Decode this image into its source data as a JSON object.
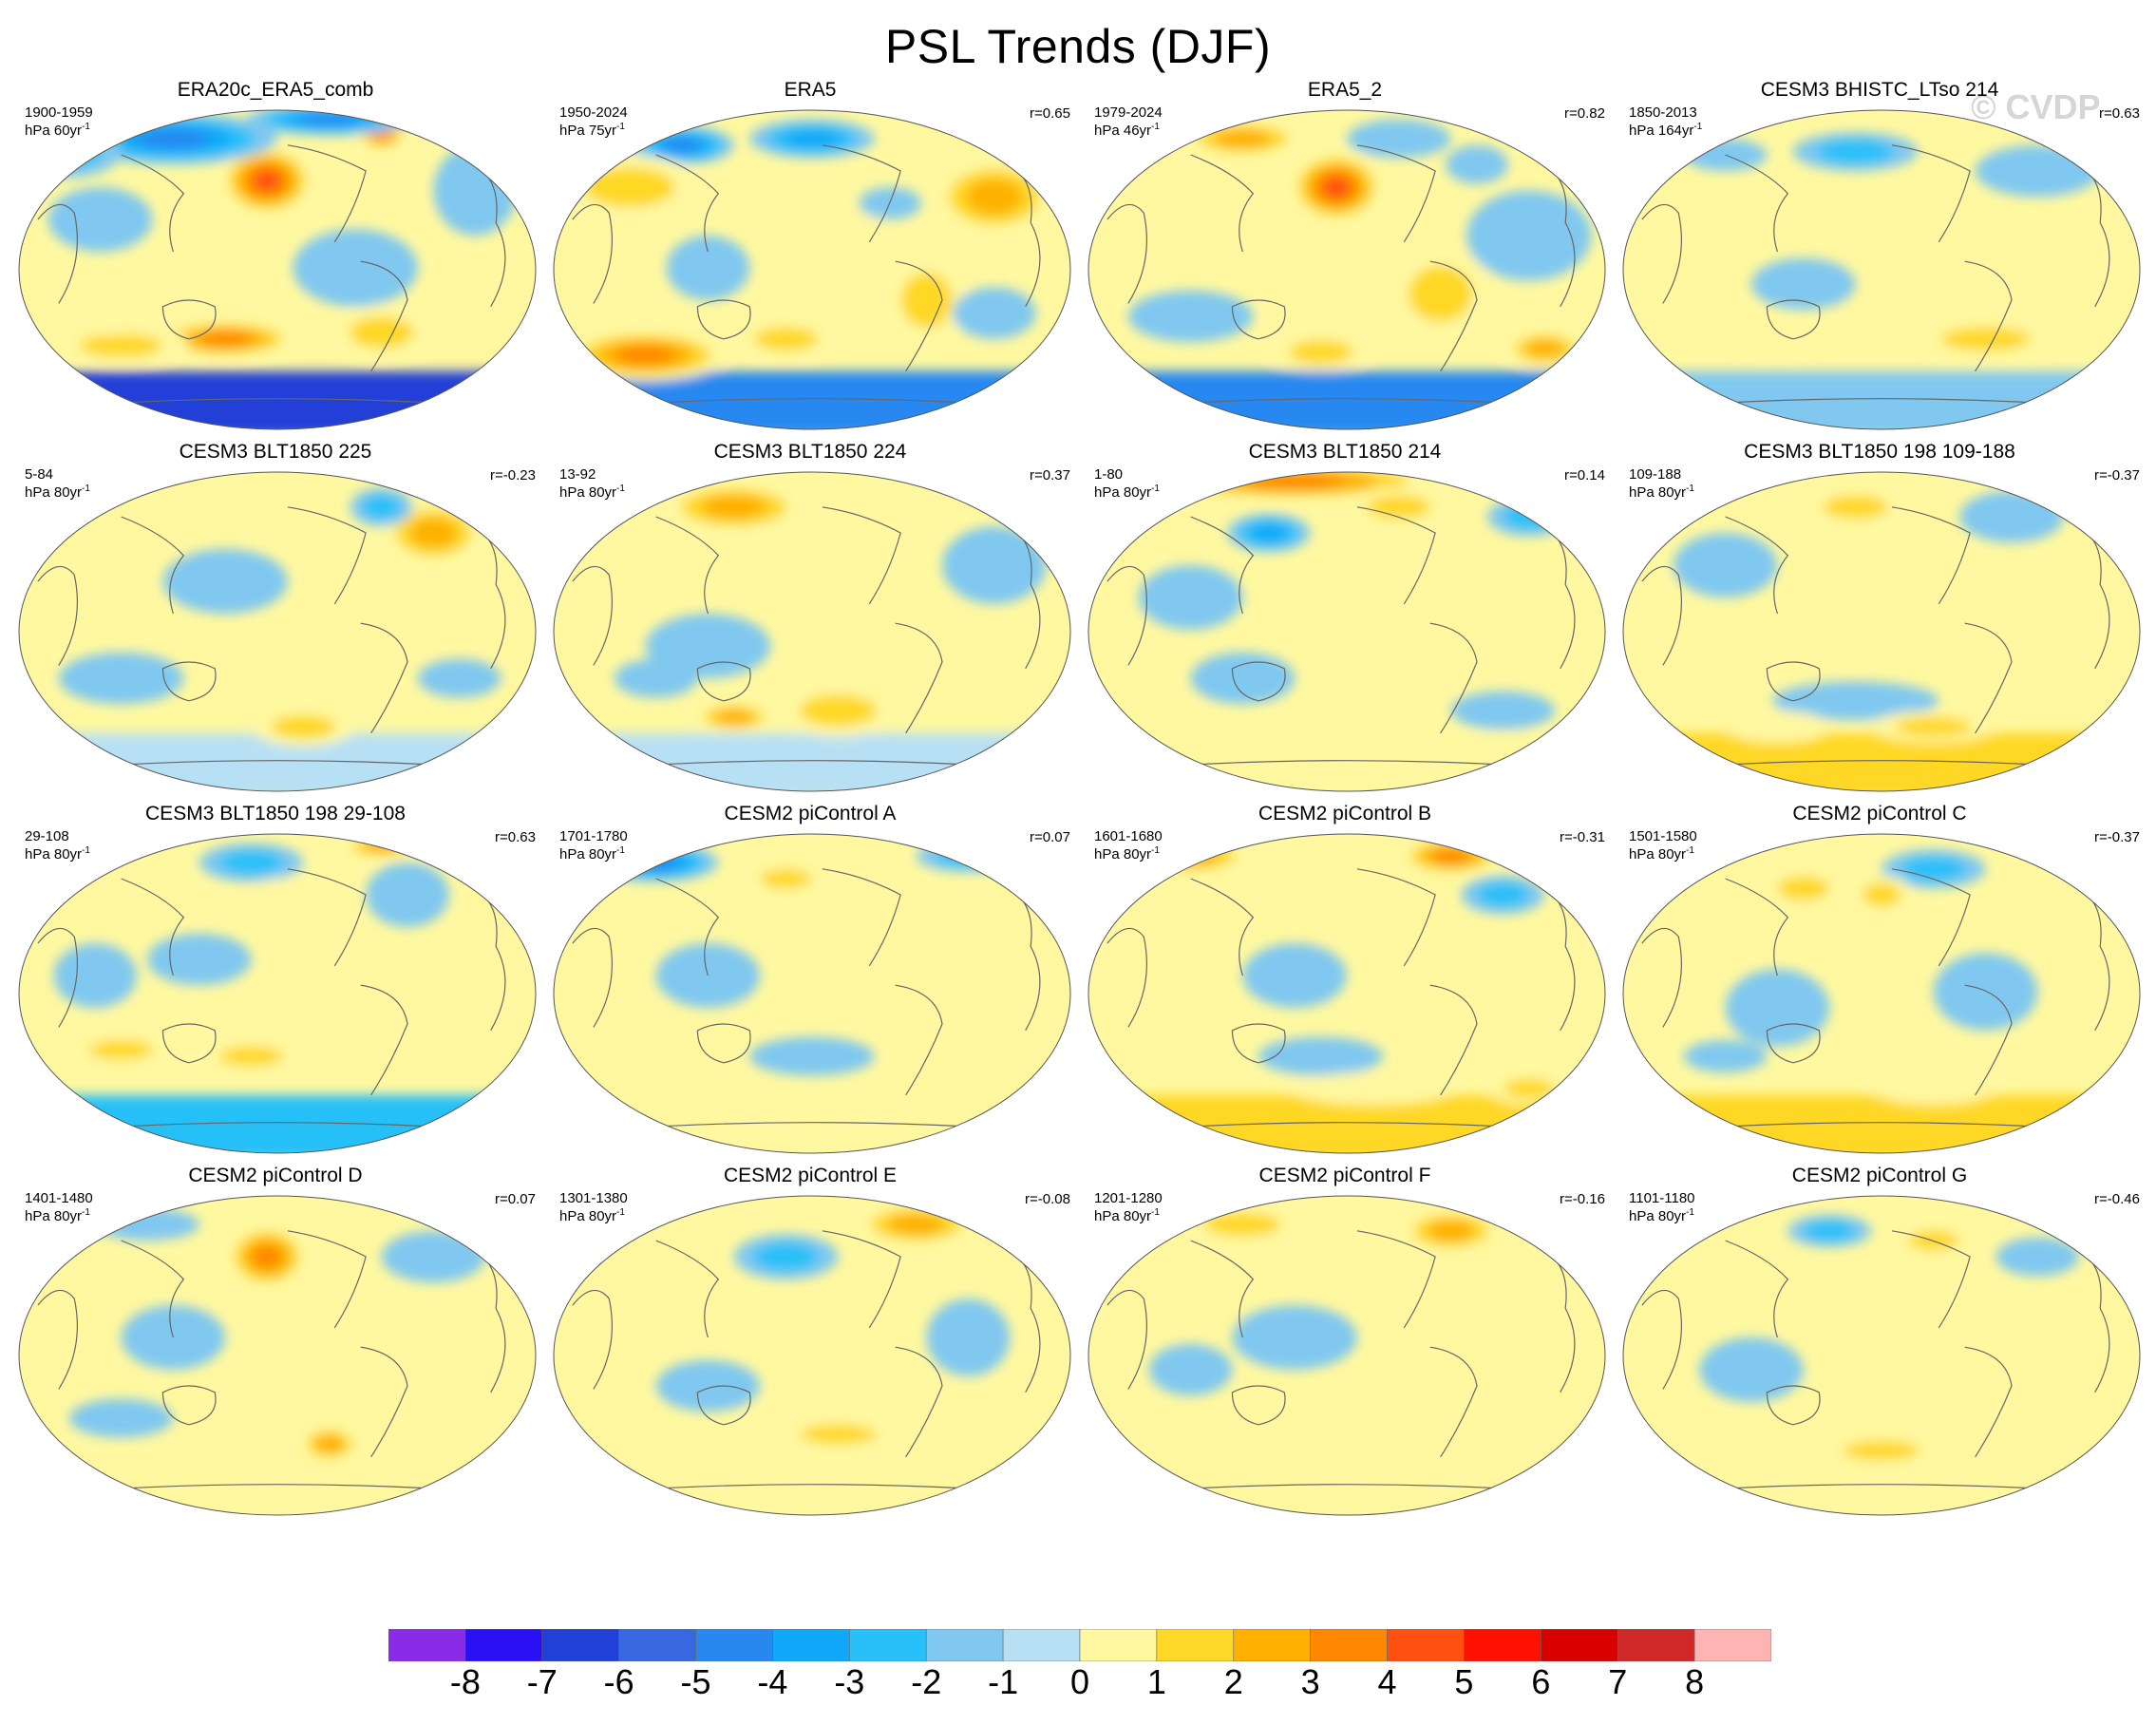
{
  "title": "PSL Trends (DJF)",
  "watermark": "© CVDP",
  "panels": [
    {
      "title": "ERA20c_ERA5_comb",
      "period": "1900-1959",
      "units": "hPa 60yr",
      "unit_exp": "-1",
      "corr": "",
      "blobs": [
        [
          0.48,
          0.23,
          0.09,
          0.11,
          4.5
        ],
        [
          0.7,
          0.08,
          0.05,
          0.06,
          4
        ],
        [
          0.4,
          0.72,
          0.14,
          0.06,
          4
        ],
        [
          0.2,
          0.74,
          0.13,
          0.06,
          2
        ],
        [
          0.3,
          0.1,
          0.2,
          0.08,
          -4
        ],
        [
          0.6,
          0.04,
          0.16,
          0.05,
          -4
        ],
        [
          0.88,
          0.26,
          0.08,
          0.14,
          -1
        ],
        [
          0.16,
          0.35,
          0.1,
          0.1,
          -1
        ],
        [
          0.1,
          0.14,
          0.1,
          0.08,
          -2
        ],
        [
          0.15,
          0.67,
          0.12,
          0.04,
          1
        ],
        [
          0.65,
          0.5,
          0.12,
          0.12,
          -1
        ],
        [
          0.7,
          0.7,
          0.1,
          0.08,
          2
        ]
      ],
      "south_band": -7
    },
    {
      "title": "ERA5",
      "period": "1950-2024",
      "units": "hPa 75yr",
      "unit_exp": "-1",
      "corr": "r=0.65",
      "blobs": [
        [
          0.25,
          0.12,
          0.1,
          0.06,
          -4
        ],
        [
          0.5,
          0.1,
          0.12,
          0.06,
          -3
        ],
        [
          0.85,
          0.28,
          0.12,
          0.12,
          3
        ],
        [
          0.15,
          0.25,
          0.14,
          0.1,
          2
        ],
        [
          0.18,
          0.77,
          0.16,
          0.08,
          4
        ],
        [
          0.45,
          0.72,
          0.1,
          0.06,
          2
        ],
        [
          0.72,
          0.6,
          0.08,
          0.14,
          2
        ],
        [
          0.3,
          0.5,
          0.08,
          0.1,
          -1
        ],
        [
          0.55,
          0.4,
          0.1,
          0.08,
          1
        ],
        [
          0.85,
          0.64,
          0.08,
          0.08,
          -1
        ],
        [
          0.65,
          0.3,
          0.06,
          0.05,
          -1
        ]
      ],
      "south_band": -5
    },
    {
      "title": "ERA5_2",
      "period": "1979-2024",
      "units": "hPa 46yr",
      "unit_exp": "-1",
      "corr": "r=0.82",
      "blobs": [
        [
          0.48,
          0.25,
          0.09,
          0.11,
          5
        ],
        [
          0.3,
          0.1,
          0.12,
          0.06,
          3
        ],
        [
          0.15,
          0.3,
          0.1,
          0.08,
          1
        ],
        [
          0.85,
          0.4,
          0.12,
          0.14,
          -1
        ],
        [
          0.2,
          0.65,
          0.12,
          0.08,
          -1
        ],
        [
          0.68,
          0.58,
          0.1,
          0.14,
          2
        ],
        [
          0.88,
          0.75,
          0.08,
          0.06,
          3
        ],
        [
          0.45,
          0.76,
          0.1,
          0.06,
          2
        ],
        [
          0.6,
          0.1,
          0.1,
          0.06,
          -1
        ],
        [
          0.75,
          0.18,
          0.06,
          0.06,
          -1
        ]
      ],
      "south_band": -5
    },
    {
      "title": "CESM3 BHISTC_LTso 214",
      "period": "1850-2013",
      "units": "hPa 164yr",
      "unit_exp": "-1",
      "corr": "r=0.63",
      "blobs": [
        [
          0.45,
          0.14,
          0.12,
          0.06,
          -2
        ],
        [
          0.8,
          0.2,
          0.12,
          0.08,
          -1
        ],
        [
          0.2,
          0.15,
          0.08,
          0.05,
          -1
        ],
        [
          0.35,
          0.55,
          0.1,
          0.08,
          -1
        ],
        [
          0.7,
          0.72,
          0.14,
          0.06,
          2
        ],
        [
          0.3,
          0.72,
          0.1,
          0.05,
          1
        ],
        [
          0.9,
          0.6,
          0.06,
          0.08,
          1
        ]
      ],
      "south_band": -2
    },
    {
      "title": "CESM3 BLT1850 225",
      "period": "5-84",
      "units": "hPa 80yr",
      "unit_exp": "-1",
      "corr": "r=-0.23",
      "blobs": [
        [
          0.8,
          0.2,
          0.1,
          0.1,
          3
        ],
        [
          0.7,
          0.12,
          0.06,
          0.06,
          -2
        ],
        [
          0.4,
          0.35,
          0.12,
          0.1,
          -1
        ],
        [
          0.55,
          0.8,
          0.1,
          0.06,
          2
        ],
        [
          0.2,
          0.65,
          0.12,
          0.08,
          -1
        ],
        [
          0.7,
          0.45,
          0.08,
          0.15,
          1
        ],
        [
          0.15,
          0.25,
          0.08,
          0.08,
          1
        ],
        [
          0.85,
          0.65,
          0.08,
          0.06,
          -1
        ]
      ],
      "south_band": -1
    },
    {
      "title": "CESM3 BLT1850 224",
      "period": "13-92",
      "units": "hPa 80yr",
      "unit_exp": "-1",
      "corr": "r=0.37",
      "blobs": [
        [
          0.35,
          0.12,
          0.14,
          0.08,
          3
        ],
        [
          0.55,
          0.75,
          0.12,
          0.08,
          2
        ],
        [
          0.35,
          0.77,
          0.08,
          0.05,
          3
        ],
        [
          0.3,
          0.55,
          0.12,
          0.1,
          -1
        ],
        [
          0.5,
          0.4,
          0.08,
          0.08,
          1
        ],
        [
          0.2,
          0.65,
          0.08,
          0.06,
          -1
        ],
        [
          0.85,
          0.3,
          0.1,
          0.12,
          -1
        ],
        [
          0.15,
          0.3,
          0.08,
          0.08,
          1
        ]
      ],
      "south_band": -1
    },
    {
      "title": "CESM3 BLT1850 214",
      "period": "1-80",
      "units": "hPa 80yr",
      "unit_exp": "-1",
      "corr": "r=0.14",
      "blobs": [
        [
          0.4,
          0.04,
          0.28,
          0.06,
          4
        ],
        [
          0.35,
          0.2,
          0.08,
          0.06,
          -3
        ],
        [
          0.6,
          0.12,
          0.1,
          0.06,
          2
        ],
        [
          0.85,
          0.15,
          0.08,
          0.06,
          -2
        ],
        [
          0.3,
          0.65,
          0.1,
          0.08,
          -1
        ],
        [
          0.65,
          0.6,
          0.08,
          0.1,
          1
        ],
        [
          0.2,
          0.4,
          0.1,
          0.1,
          -1
        ],
        [
          0.8,
          0.75,
          0.1,
          0.06,
          -1
        ]
      ],
      "south_band": 0
    },
    {
      "title": "CESM3 BLT1850 198 109-188",
      "period": "109-188",
      "units": "hPa 80yr",
      "unit_exp": "-1",
      "corr": "r=-0.37",
      "blobs": [
        [
          0.45,
          0.12,
          0.1,
          0.06,
          2
        ],
        [
          0.75,
          0.15,
          0.1,
          0.08,
          -1
        ],
        [
          0.2,
          0.3,
          0.1,
          0.1,
          -1
        ],
        [
          0.45,
          0.72,
          0.16,
          0.06,
          -1
        ],
        [
          0.6,
          0.8,
          0.12,
          0.05,
          2
        ],
        [
          0.3,
          0.8,
          0.1,
          0.05,
          1
        ],
        [
          0.85,
          0.4,
          0.08,
          0.12,
          1
        ]
      ],
      "south_band": 1
    },
    {
      "title": "CESM3 BLT1850 198 29-108",
      "period": "29-108",
      "units": "hPa 80yr",
      "unit_exp": "-1",
      "corr": "r=0.63",
      "blobs": [
        [
          0.45,
          0.1,
          0.1,
          0.06,
          -2
        ],
        [
          0.7,
          0.05,
          0.08,
          0.04,
          3
        ],
        [
          0.5,
          0.2,
          0.05,
          0.05,
          1
        ],
        [
          0.2,
          0.68,
          0.1,
          0.05,
          2
        ],
        [
          0.45,
          0.7,
          0.1,
          0.05,
          2
        ],
        [
          0.75,
          0.2,
          0.08,
          0.1,
          -1
        ],
        [
          0.35,
          0.4,
          0.1,
          0.08,
          -1
        ],
        [
          0.15,
          0.45,
          0.08,
          0.1,
          -1
        ]
      ],
      "south_band": -3
    },
    {
      "title": "CESM2 piControl A",
      "period": "1701-1780",
      "units": "hPa 80yr",
      "unit_exp": "-1",
      "corr": "r=0.07",
      "blobs": [
        [
          0.2,
          0.1,
          0.12,
          0.06,
          -4
        ],
        [
          0.45,
          0.15,
          0.08,
          0.05,
          2
        ],
        [
          0.8,
          0.08,
          0.1,
          0.05,
          -2
        ],
        [
          0.3,
          0.45,
          0.1,
          0.1,
          -1
        ],
        [
          0.5,
          0.7,
          0.12,
          0.06,
          -1
        ],
        [
          0.2,
          0.7,
          0.08,
          0.05,
          1
        ],
        [
          0.75,
          0.4,
          0.08,
          0.1,
          1
        ]
      ],
      "south_band": 0
    },
    {
      "title": "CESM2 piControl B",
      "period": "1601-1680",
      "units": "hPa 80yr",
      "unit_exp": "-1",
      "corr": "r=-0.31",
      "blobs": [
        [
          0.2,
          0.08,
          0.12,
          0.06,
          3
        ],
        [
          0.7,
          0.08,
          0.1,
          0.06,
          4
        ],
        [
          0.8,
          0.2,
          0.08,
          0.06,
          -2
        ],
        [
          0.4,
          0.45,
          0.1,
          0.1,
          -1
        ],
        [
          0.45,
          0.7,
          0.12,
          0.06,
          -1
        ],
        [
          0.55,
          0.8,
          0.16,
          0.05,
          1
        ],
        [
          0.85,
          0.8,
          0.08,
          0.05,
          2
        ]
      ],
      "south_band": 1
    },
    {
      "title": "CESM2 piControl C",
      "period": "1501-1580",
      "units": "hPa 80yr",
      "unit_exp": "-1",
      "corr": "r=-0.37",
      "blobs": [
        [
          0.35,
          0.18,
          0.08,
          0.06,
          2
        ],
        [
          0.6,
          0.12,
          0.1,
          0.06,
          -2
        ],
        [
          0.5,
          0.2,
          0.06,
          0.06,
          2
        ],
        [
          0.3,
          0.55,
          0.1,
          0.12,
          -1
        ],
        [
          0.7,
          0.5,
          0.1,
          0.12,
          -1
        ],
        [
          0.6,
          0.8,
          0.12,
          0.05,
          1
        ],
        [
          0.2,
          0.7,
          0.08,
          0.05,
          -1
        ]
      ],
      "south_band": 1
    },
    {
      "title": "CESM2 piControl D",
      "period": "1401-1480",
      "units": "hPa 80yr",
      "unit_exp": "-1",
      "corr": "r=0.07",
      "blobs": [
        [
          0.48,
          0.2,
          0.08,
          0.1,
          4
        ],
        [
          0.25,
          0.1,
          0.1,
          0.05,
          -1
        ],
        [
          0.8,
          0.2,
          0.1,
          0.08,
          -1
        ],
        [
          0.6,
          0.78,
          0.06,
          0.06,
          3
        ],
        [
          0.2,
          0.7,
          0.1,
          0.06,
          -1
        ],
        [
          0.3,
          0.45,
          0.1,
          0.1,
          -1
        ],
        [
          0.75,
          0.6,
          0.08,
          0.1,
          1
        ]
      ],
      "south_band": 0
    },
    {
      "title": "CESM2 piControl E",
      "period": "1301-1380",
      "units": "hPa 80yr",
      "unit_exp": "-1",
      "corr": "r=-0.08",
      "blobs": [
        [
          0.7,
          0.1,
          0.12,
          0.07,
          3
        ],
        [
          0.45,
          0.2,
          0.1,
          0.07,
          -2
        ],
        [
          0.2,
          0.2,
          0.1,
          0.06,
          1
        ],
        [
          0.55,
          0.75,
          0.12,
          0.05,
          2
        ],
        [
          0.3,
          0.6,
          0.1,
          0.08,
          -1
        ],
        [
          0.8,
          0.45,
          0.08,
          0.12,
          -1
        ],
        [
          0.4,
          0.8,
          0.1,
          0.05,
          1
        ]
      ],
      "south_band": 0
    },
    {
      "title": "CESM2 piControl F",
      "period": "1201-1280",
      "units": "hPa 80yr",
      "unit_exp": "-1",
      "corr": "r=-0.16",
      "blobs": [
        [
          0.7,
          0.12,
          0.1,
          0.07,
          3
        ],
        [
          0.3,
          0.1,
          0.12,
          0.06,
          2
        ],
        [
          0.55,
          0.15,
          0.06,
          0.05,
          1
        ],
        [
          0.4,
          0.45,
          0.12,
          0.1,
          -1
        ],
        [
          0.7,
          0.7,
          0.1,
          0.06,
          1
        ],
        [
          0.2,
          0.55,
          0.08,
          0.08,
          -1
        ],
        [
          0.85,
          0.4,
          0.08,
          0.1,
          1
        ]
      ],
      "south_band": 0
    },
    {
      "title": "CESM2 piControl G",
      "period": "1101-1180",
      "units": "hPa 80yr",
      "unit_exp": "-1",
      "corr": "r=-0.46",
      "blobs": [
        [
          0.4,
          0.12,
          0.08,
          0.05,
          -2
        ],
        [
          0.6,
          0.15,
          0.08,
          0.05,
          2
        ],
        [
          0.8,
          0.2,
          0.08,
          0.06,
          -1
        ],
        [
          0.5,
          0.8,
          0.12,
          0.05,
          2
        ],
        [
          0.25,
          0.55,
          0.1,
          0.1,
          -1
        ],
        [
          0.75,
          0.55,
          0.08,
          0.12,
          1
        ],
        [
          0.2,
          0.3,
          0.08,
          0.06,
          1
        ]
      ],
      "south_band": 0
    }
  ],
  "colorbar": {
    "labels": [
      "-8",
      "-7",
      "-6",
      "-5",
      "-4",
      "-3",
      "-2",
      "-1",
      "0",
      "1",
      "2",
      "3",
      "4",
      "5",
      "6",
      "7",
      "8"
    ],
    "colors": [
      "#8a2be8",
      "#2a10f5",
      "#2040d8",
      "#3868e0",
      "#2888f0",
      "#10a8f8",
      "#28c0f8",
      "#80c8f0",
      "#b8e0f4",
      "#fff8a0",
      "#ffd828",
      "#ffb000",
      "#ff8800",
      "#ff5010",
      "#ff1000",
      "#d80000",
      "#d02828",
      "#ffb4b4"
    ]
  }
}
